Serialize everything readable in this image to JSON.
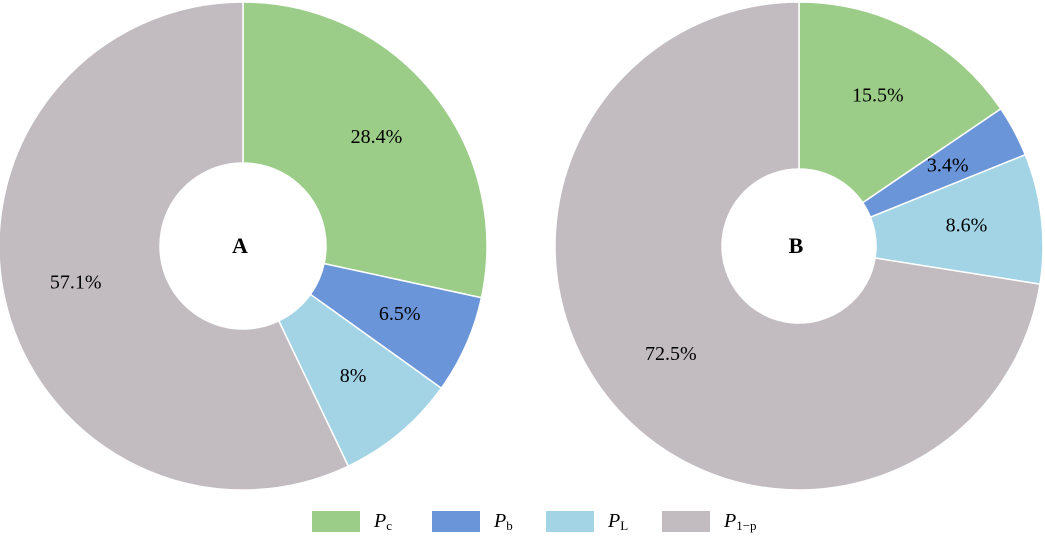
{
  "chart_data": [
    {
      "type": "pie",
      "label": "A",
      "values": [
        28.4,
        6.5,
        8,
        57.1
      ],
      "value_labels": [
        "28.4%",
        "6.5%",
        "8%",
        "57.1%"
      ]
    },
    {
      "type": "pie",
      "label": "B",
      "values": [
        15.5,
        3.4,
        8.6,
        72.5
      ],
      "value_labels": [
        "15.5%",
        "3.4%",
        "8.6%",
        "72.5%"
      ]
    }
  ],
  "legend": [
    {
      "symbol": "P",
      "subscript": "c",
      "color": "#9bcd88"
    },
    {
      "symbol": "P",
      "subscript": "b",
      "color": "#6a95d9"
    },
    {
      "symbol": "P",
      "subscript": "L",
      "color": "#a2d4e6"
    },
    {
      "symbol": "P",
      "subscript": "1−p",
      "color": "#c2bcc0"
    }
  ]
}
